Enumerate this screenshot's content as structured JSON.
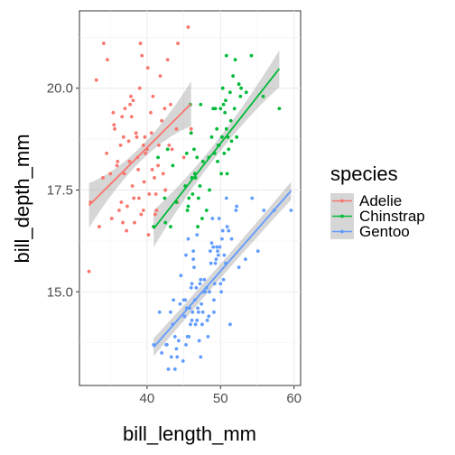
{
  "chart_data": {
    "type": "scatter",
    "title": "",
    "xlabel": "bill_length_mm",
    "ylabel": "bill_depth_mm",
    "xlim": [
      30.8,
      60.9
    ],
    "ylim": [
      12.7,
      21.9
    ],
    "x_ticks": [
      40,
      50,
      60
    ],
    "x_tick_labels": [
      "40",
      "50",
      "60"
    ],
    "y_ticks": [
      15,
      17.5,
      20
    ],
    "y_tick_labels": [
      "15.0",
      "17.5",
      "20.0"
    ],
    "grid": true,
    "legend_title": "species",
    "legend_position": "right",
    "series": [
      {
        "name": "Adelie",
        "color": "#F8766D",
        "x": [
          32.1,
          33.5,
          34.0,
          34.5,
          35.0,
          35.5,
          36.0,
          36.5,
          37.0,
          37.5,
          38.0,
          38.5,
          39.0,
          39.5,
          40.0,
          40.5,
          41.0,
          41.5,
          42.0,
          42.5,
          43.0,
          44.0,
          45.0,
          46.0,
          35.2,
          36.2,
          37.2,
          38.2,
          39.2,
          40.2,
          41.2,
          42.2,
          43.2,
          44.2,
          36.8,
          37.8,
          38.8,
          39.8,
          40.8,
          41.8,
          42.8,
          34.6,
          35.6,
          36.6,
          37.6,
          38.6,
          39.6,
          40.6,
          41.6,
          38.1,
          39.1,
          40.1,
          37.3,
          38.3,
          39.3,
          36.4,
          35.4,
          42.4,
          43.4,
          45.6,
          46.0,
          44.1,
          41.1,
          40.3,
          39.7,
          38.9,
          37.9,
          36.9,
          35.9,
          34.1,
          33.1,
          32.3,
          39.5,
          40.9,
          42.5,
          37.7,
          38.7,
          41.3,
          40.7,
          36.7
        ],
        "y": [
          15.5,
          16.6,
          17.8,
          18.4,
          17.9,
          19.1,
          18.2,
          17.2,
          19.5,
          18.7,
          17.6,
          18.9,
          20.0,
          17.0,
          18.5,
          19.4,
          17.8,
          18.1,
          19.2,
          17.5,
          18.6,
          19.0,
          18.3,
          18.9,
          16.8,
          17.0,
          16.5,
          17.3,
          16.9,
          16.4,
          17.4,
          17.9,
          19.6,
          21.1,
          18.8,
          19.8,
          18.0,
          18.4,
          19.8,
          20.3,
          20.7,
          20.7,
          19.0,
          19.3,
          18.2,
          18.8,
          17.7,
          18.9,
          18.6,
          19.7,
          21.1,
          20.5,
          17.1,
          16.7,
          20.8,
          18.6,
          19.4,
          19.5,
          18.5,
          21.5,
          19.0,
          17.2,
          16.9,
          17.4,
          18.8,
          17.3,
          19.3,
          17.9,
          18.1,
          21.1,
          20.2,
          17.2,
          18.6,
          16.6,
          17.5,
          19.6,
          18.3,
          17.0,
          18.0,
          16.7
        ]
      },
      {
        "name": "Chinstrap",
        "color": "#00BA38",
        "x": [
          40.9,
          41.5,
          42.4,
          42.5,
          43.2,
          44.0,
          45.2,
          45.4,
          45.7,
          46.0,
          46.1,
          46.4,
          46.5,
          46.6,
          46.8,
          46.9,
          47.0,
          47.5,
          47.6,
          48.1,
          48.5,
          49.0,
          49.2,
          49.5,
          49.6,
          49.7,
          50.0,
          50.1,
          50.2,
          50.3,
          50.5,
          50.6,
          50.7,
          50.8,
          50.9,
          51.0,
          51.3,
          51.4,
          51.5,
          51.7,
          51.9,
          52.0,
          52.2,
          52.7,
          52.8,
          53.5,
          54.2,
          55.8,
          58.0,
          45.5,
          46.2,
          47.3,
          48.8,
          49.3,
          50.4,
          51.1,
          45.9,
          43.5,
          42.8,
          49.8,
          50.8,
          52.5,
          45.6,
          47.2,
          48.4
        ],
        "y": [
          16.6,
          18.3,
          17.3,
          16.7,
          16.6,
          17.2,
          17.6,
          18.4,
          17.3,
          18.9,
          17.8,
          18.5,
          17.9,
          17.8,
          18.3,
          16.6,
          17.3,
          16.8,
          18.2,
          17.0,
          17.5,
          19.5,
          18.4,
          19.0,
          18.2,
          18.6,
          19.5,
          17.9,
          18.8,
          20.0,
          18.4,
          19.4,
          19.7,
          19.0,
          17.9,
          18.8,
          19.9,
          19.2,
          18.7,
          20.3,
          19.5,
          20.7,
          18.8,
          19.8,
          20.0,
          19.9,
          20.8,
          19.8,
          19.5,
          17.0,
          17.4,
          19.6,
          18.8,
          19.5,
          19.6,
          18.5,
          19.6,
          18.1,
          18.5,
          18.6,
          20.8,
          20.1,
          17.1,
          17.6,
          18.3
        ]
      },
      {
        "name": "Gentoo",
        "color": "#619CFF",
        "x": [
          40.9,
          41.7,
          42.0,
          42.6,
          42.7,
          42.9,
          43.2,
          43.3,
          43.5,
          43.8,
          44.0,
          44.5,
          44.9,
          45.0,
          45.1,
          45.2,
          45.3,
          45.4,
          45.5,
          45.7,
          45.8,
          46.0,
          46.1,
          46.2,
          46.3,
          46.4,
          46.5,
          46.6,
          46.8,
          46.9,
          47.0,
          47.2,
          47.3,
          47.4,
          47.5,
          47.6,
          47.7,
          47.8,
          48.1,
          48.2,
          48.4,
          48.5,
          48.6,
          48.7,
          48.8,
          49.0,
          49.1,
          49.2,
          49.3,
          49.4,
          49.5,
          49.6,
          49.8,
          49.9,
          50.0,
          50.1,
          50.2,
          50.4,
          50.5,
          50.7,
          50.8,
          51.1,
          51.3,
          51.5,
          52.1,
          52.2,
          52.5,
          53.4,
          54.3,
          55.1,
          55.9,
          57.3,
          59.6,
          44.3,
          45.9,
          46.7,
          47.1,
          48.3,
          49.7,
          50.3,
          43.6,
          44.6,
          45.6,
          46.3,
          47.9,
          48.9,
          46.1,
          45.3,
          44.1,
          47.3,
          49.1,
          50.9,
          46.8,
          43.8
        ],
        "y": [
          13.7,
          14.5,
          13.5,
          13.7,
          13.7,
          13.1,
          14.5,
          13.4,
          14.2,
          13.9,
          13.6,
          14.7,
          13.3,
          14.8,
          14.4,
          14.8,
          13.7,
          14.6,
          13.9,
          13.9,
          14.6,
          15.1,
          14.3,
          14.5,
          15.8,
          15.6,
          14.8,
          14.2,
          14.3,
          14.6,
          14.5,
          15.2,
          15.3,
          14.7,
          14.2,
          14.5,
          15.0,
          15.3,
          15.1,
          14.3,
          14.4,
          15.0,
          16.0,
          15.7,
          16.2,
          16.1,
          14.8,
          15.2,
          15.7,
          15.8,
          16.1,
          16.0,
          16.8,
          16.1,
          15.2,
          15.0,
          16.3,
          15.3,
          15.9,
          15.7,
          17.3,
          16.5,
          14.2,
          16.3,
          17.0,
          17.1,
          15.6,
          15.8,
          17.3,
          16.0,
          17.0,
          17.0,
          17.0,
          13.8,
          14.2,
          15.1,
          13.8,
          13.9,
          15.9,
          16.5,
          14.8,
          15.4,
          16.3,
          16.0,
          15.0,
          16.8,
          15.2,
          15.9,
          13.4,
          13.4,
          14.5,
          16.6,
          16.4,
          13.1
        ]
      }
    ],
    "trend_lines": [
      {
        "name": "Adelie",
        "color": "#F8766D",
        "x_range": [
          32.1,
          46.0
        ],
        "y_range": [
          17.12,
          19.62
        ],
        "band_halfwidth": [
          0.55,
          0.5
        ]
      },
      {
        "name": "Chinstrap",
        "color": "#00BA38",
        "x_range": [
          40.9,
          58.0
        ],
        "y_range": [
          16.55,
          20.48
        ],
        "band_halfwidth": [
          0.45,
          0.5
        ]
      },
      {
        "name": "Gentoo",
        "color": "#619CFF",
        "x_range": [
          40.9,
          59.6
        ],
        "y_range": [
          13.64,
          17.48
        ],
        "band_halfwidth": [
          0.22,
          0.5
        ]
      }
    ]
  }
}
